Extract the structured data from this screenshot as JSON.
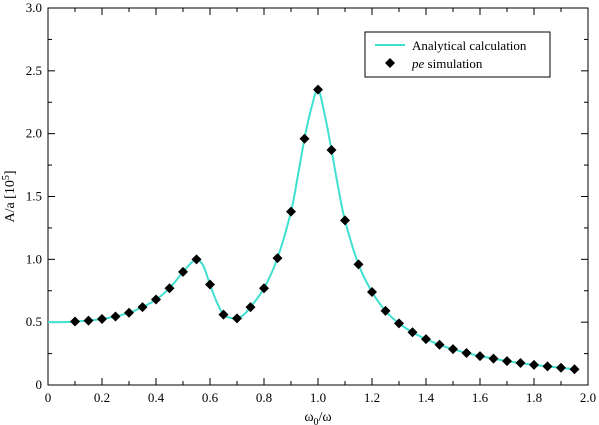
{
  "chart_data": {
    "type": "line",
    "xlabel": "ω",
    "xlabel_sub": "0",
    "xlabel_tail": "/ω",
    "ylabel": "A/a [10",
    "ylabel_sup": "5",
    "ylabel_tail": "]",
    "xlim": [
      0,
      2.0
    ],
    "ylim": [
      0,
      3.0
    ],
    "x_ticks": [
      0,
      0.2,
      0.4,
      0.6,
      0.8,
      1.0,
      1.2,
      1.4,
      1.6,
      1.8,
      2.0
    ],
    "x_tick_labels": [
      "0",
      "0.2",
      "0.4",
      "0.6",
      "0.8",
      "1.0",
      "1.2",
      "1.4",
      "1.6",
      "1.8",
      "2.0"
    ],
    "y_ticks": [
      0,
      0.5,
      1.0,
      1.5,
      2.0,
      2.5,
      3.0
    ],
    "y_tick_labels": [
      "0",
      "0.5",
      "1.0",
      "1.5",
      "2.0",
      "2.5",
      "3.0"
    ],
    "grid": false,
    "legend_position": "top-right",
    "series": [
      {
        "name": "Analytical calculation",
        "kind": "line",
        "color": "#40e0d0",
        "x": [
          0,
          0.05,
          0.1,
          0.15,
          0.2,
          0.25,
          0.3,
          0.35,
          0.4,
          0.45,
          0.5,
          0.525,
          0.55,
          0.575,
          0.6,
          0.625,
          0.65,
          0.675,
          0.7,
          0.725,
          0.75,
          0.8,
          0.85,
          0.9,
          0.925,
          0.95,
          0.975,
          1.0,
          1.025,
          1.05,
          1.075,
          1.1,
          1.15,
          1.2,
          1.25,
          1.3,
          1.35,
          1.4,
          1.45,
          1.5,
          1.55,
          1.6,
          1.65,
          1.7,
          1.75,
          1.8,
          1.85,
          1.9,
          1.95
        ],
        "y": [
          0.5,
          0.5,
          0.505,
          0.512,
          0.525,
          0.545,
          0.575,
          0.62,
          0.68,
          0.77,
          0.9,
          0.96,
          1.0,
          0.95,
          0.8,
          0.66,
          0.56,
          0.535,
          0.53,
          0.56,
          0.62,
          0.77,
          1.01,
          1.38,
          1.66,
          1.96,
          2.2,
          2.35,
          2.15,
          1.87,
          1.57,
          1.31,
          0.96,
          0.74,
          0.59,
          0.49,
          0.42,
          0.365,
          0.32,
          0.285,
          0.255,
          0.23,
          0.21,
          0.19,
          0.175,
          0.16,
          0.148,
          0.137,
          0.125
        ]
      },
      {
        "name": "simulation",
        "name_prefix": "pe",
        "kind": "scatter",
        "marker": "diamond",
        "color": "#000000",
        "x": [
          0.1,
          0.15,
          0.2,
          0.25,
          0.3,
          0.35,
          0.4,
          0.45,
          0.5,
          0.55,
          0.6,
          0.65,
          0.7,
          0.75,
          0.8,
          0.85,
          0.9,
          0.95,
          1.0,
          1.05,
          1.1,
          1.15,
          1.2,
          1.25,
          1.3,
          1.35,
          1.4,
          1.45,
          1.5,
          1.55,
          1.6,
          1.65,
          1.7,
          1.75,
          1.8,
          1.85,
          1.9,
          1.95
        ],
        "y": [
          0.505,
          0.512,
          0.525,
          0.545,
          0.575,
          0.62,
          0.68,
          0.77,
          0.9,
          1.0,
          0.8,
          0.56,
          0.53,
          0.62,
          0.77,
          1.01,
          1.38,
          1.96,
          2.35,
          1.87,
          1.31,
          0.96,
          0.74,
          0.59,
          0.49,
          0.42,
          0.365,
          0.32,
          0.285,
          0.255,
          0.23,
          0.21,
          0.19,
          0.175,
          0.16,
          0.148,
          0.137,
          0.125
        ]
      }
    ]
  }
}
